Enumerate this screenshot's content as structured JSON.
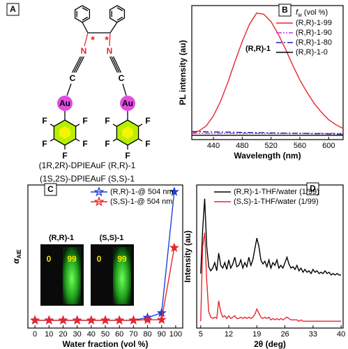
{
  "panel_a": {
    "panel": "A",
    "atoms": [
      "N",
      "N",
      "C",
      "C",
      "Au",
      "Au",
      "F",
      "F",
      "F",
      "F",
      "F",
      "F",
      "F",
      "F",
      "F",
      "F",
      "*",
      "*"
    ],
    "captions": [
      "(1R,2R)-DPIEAuF (R,R)-1",
      "(1S,2S)-DPIEAuF (S,S)-1"
    ]
  },
  "chart_data": [
    {
      "type": "line",
      "panel": "B",
      "xlabel": "Wavelength (nm)",
      "ylabel": "PL intensity (au)",
      "annotation": "(R,R)-1",
      "legend_title": {
        "symbol": "f",
        "subscript": "w",
        "text": " (vol %)"
      },
      "legend": "upper right",
      "xlim": [
        410,
        620
      ],
      "ylim": [
        -3,
        105
      ],
      "xticks": [
        440,
        480,
        520,
        560,
        600
      ],
      "x": [
        410,
        420,
        430,
        440,
        450,
        460,
        470,
        480,
        490,
        500,
        510,
        520,
        530,
        540,
        550,
        560,
        570,
        580,
        590,
        600,
        610,
        620
      ],
      "series": [
        {
          "name": "(R,R)-1-99",
          "color": "#e8262a",
          "linestyle": "solid",
          "values": [
            2,
            4,
            8,
            16,
            28,
            43,
            60,
            76,
            90,
            99,
            98,
            92,
            82,
            70,
            57,
            45,
            35,
            26,
            19,
            13,
            9,
            6
          ]
        },
        {
          "name": "(R,R)-1-90",
          "color": "#cc33cc",
          "linestyle": "dashdotdot",
          "values": [
            2,
            2,
            2,
            2,
            2,
            2,
            2,
            2,
            2,
            2,
            2,
            2,
            2,
            2,
            2,
            2,
            2,
            2,
            2,
            2,
            2,
            2
          ]
        },
        {
          "name": "(R,R)-1-80",
          "color": "#1a1aa8",
          "linestyle": "dashdot",
          "values": [
            3.5,
            3.4,
            3.3,
            3.2,
            3.1,
            3,
            2.9,
            2.8,
            2.7,
            2.6,
            2.5,
            2.4,
            2.3,
            2.2,
            2.1,
            2,
            1.9,
            1.8,
            1.7,
            1.6,
            1.5,
            1.4
          ]
        },
        {
          "name": "(R,R)-1-0",
          "color": "#000000",
          "linestyle": "solid",
          "values": [
            0.5,
            0.5,
            0.5,
            0.5,
            0.5,
            0.5,
            0.5,
            0.5,
            0.5,
            0.5,
            0.5,
            0.5,
            0.5,
            0.5,
            0.5,
            0.5,
            0.5,
            0.5,
            0.5,
            0.5,
            0.5,
            0.5
          ]
        }
      ]
    },
    {
      "type": "line",
      "panel": "C",
      "marker": "star",
      "xlabel": "Water fraction (vol %)",
      "ylabel": {
        "symbol": "α",
        "subscript": "AIE"
      },
      "legend": "upper right",
      "xlim": [
        -5,
        105
      ],
      "ylim": [
        -30,
        540
      ],
      "xticks": [
        0,
        10,
        20,
        30,
        40,
        50,
        60,
        70,
        80,
        90,
        100
      ],
      "x": [
        0,
        10,
        20,
        30,
        40,
        50,
        60,
        70,
        80,
        90,
        99
      ],
      "series": [
        {
          "name": "(R,R)-1-@ 504 nm",
          "color": "#1f3fd6",
          "values": [
            1,
            1,
            1,
            1,
            1,
            1,
            1,
            1,
            12,
            30,
            513
          ]
        },
        {
          "name": "(S,S)-1-@ 504 nm",
          "color": "#e8262a",
          "values": [
            1,
            1,
            1,
            1,
            1,
            1,
            1,
            1,
            3,
            3,
            290
          ]
        }
      ],
      "insets": [
        {
          "label": "(R,R)-1",
          "vials": [
            0,
            99
          ]
        },
        {
          "label": "(S,S)-1",
          "vials": [
            0,
            99
          ]
        }
      ]
    },
    {
      "type": "line",
      "panel": "D",
      "xlabel": "2θ (deg)",
      "ylabel": "Intensity (au)",
      "legend": "upper left",
      "xlim": [
        4,
        40.5
      ],
      "ylim": [
        0,
        105
      ],
      "xticks": [
        5,
        12,
        19,
        26,
        33,
        40
      ],
      "x": [
        5,
        5.5,
        6,
        6.5,
        7,
        7.5,
        8,
        8.5,
        9,
        9.5,
        10,
        10.5,
        11,
        11.5,
        12,
        12.5,
        13,
        13.5,
        14,
        14.5,
        15,
        15.5,
        16,
        16.5,
        17,
        17.5,
        18,
        18.5,
        19,
        19.5,
        20,
        20.5,
        21,
        21.5,
        22,
        22.5,
        23,
        23.5,
        24,
        24.5,
        25,
        25.5,
        26,
        26.5,
        27,
        27.5,
        28,
        28.5,
        29,
        29.5,
        30,
        30.5,
        31,
        31.5,
        32,
        32.5,
        33,
        33.5,
        34,
        34.5,
        35,
        35.5,
        36,
        36.5,
        37,
        37.5,
        38,
        38.5,
        39,
        39.5,
        40
      ],
      "series": [
        {
          "name": "(R,R)-1-THF/water (1/99)",
          "color": "#000000",
          "values": [
            40,
            72,
            95,
            60,
            45,
            42,
            44,
            48,
            42,
            55,
            46,
            44,
            48,
            43,
            50,
            44,
            47,
            52,
            45,
            46,
            50,
            44,
            48,
            45,
            52,
            46,
            50,
            58,
            66,
            60,
            50,
            47,
            49,
            45,
            50,
            44,
            48,
            46,
            50,
            44,
            46,
            44,
            48,
            52,
            47,
            44,
            45,
            43,
            46,
            42,
            44,
            41,
            43,
            41,
            42,
            40,
            43,
            41,
            42,
            40,
            41,
            40,
            42,
            40,
            41,
            39,
            40,
            39,
            40,
            39,
            39
          ]
        },
        {
          "name": "(S,S)-1-THF/water (1/99)",
          "color": "#e8262a",
          "values": [
            5,
            60,
            70,
            35,
            12,
            8,
            7,
            8,
            7,
            20,
            12,
            8,
            9,
            7,
            9,
            7,
            8,
            9,
            7,
            7,
            8,
            7,
            8,
            7,
            8,
            7,
            8,
            10,
            14,
            11,
            8,
            7,
            8,
            7,
            8,
            6,
            7,
            6,
            7,
            6,
            7,
            6,
            7,
            8,
            7,
            6,
            6,
            6,
            6,
            5,
            6,
            5,
            5,
            5,
            5,
            5,
            5,
            5,
            5,
            5,
            5,
            5,
            5,
            5,
            5,
            5,
            5,
            5,
            5,
            5,
            5
          ]
        }
      ]
    }
  ]
}
